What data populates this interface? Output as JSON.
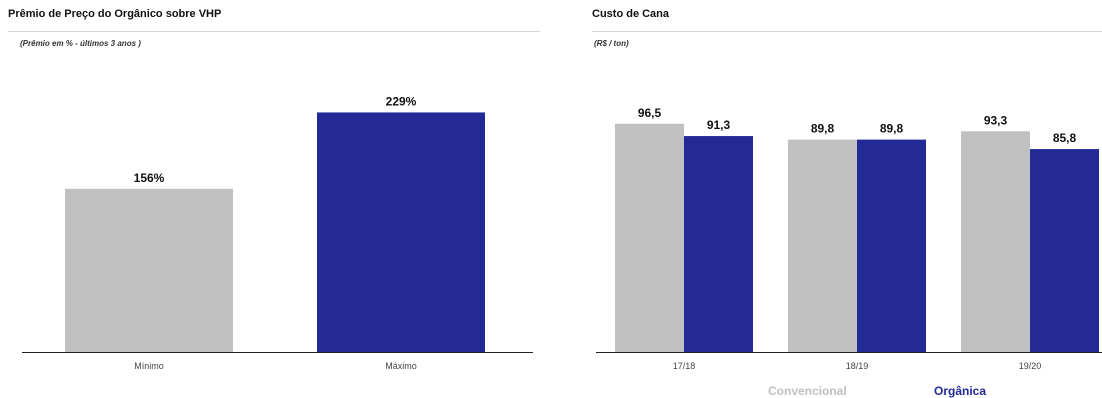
{
  "chart_data": [
    {
      "type": "bar",
      "title": "Prêmio de Preço do Orgânico sobre VHP",
      "subtitle": "(Prêmio em % - últimos 3 anos )",
      "categories": [
        "Mínimo",
        "Máximo"
      ],
      "values": [
        156,
        229
      ],
      "value_labels": [
        "156%",
        "229%"
      ],
      "bar_colors": [
        "#c0c0c0",
        "#232a96"
      ],
      "ylim": [
        0,
        260
      ],
      "grid": false
    },
    {
      "type": "bar",
      "title": "Custo de Cana",
      "subtitle": "(R$ / ton)",
      "categories": [
        "17/18",
        "18/19",
        "19/20"
      ],
      "series": [
        {
          "name": "Convencional",
          "values": [
            96.5,
            89.8,
            93.3
          ],
          "labels": [
            "96,5",
            "89,8",
            "93,3"
          ],
          "color": "#c0c0c0"
        },
        {
          "name": "Orgânica",
          "values": [
            91.3,
            89.8,
            85.8
          ],
          "labels": [
            "91,3",
            "89,8",
            "85,8"
          ],
          "color": "#232a96"
        }
      ],
      "ylim": [
        0,
        115
      ],
      "legend_position": "bottom",
      "grid": false
    }
  ],
  "colors": {
    "legend_convencional": "#c0c0c0",
    "legend_organica": "#232a96"
  }
}
